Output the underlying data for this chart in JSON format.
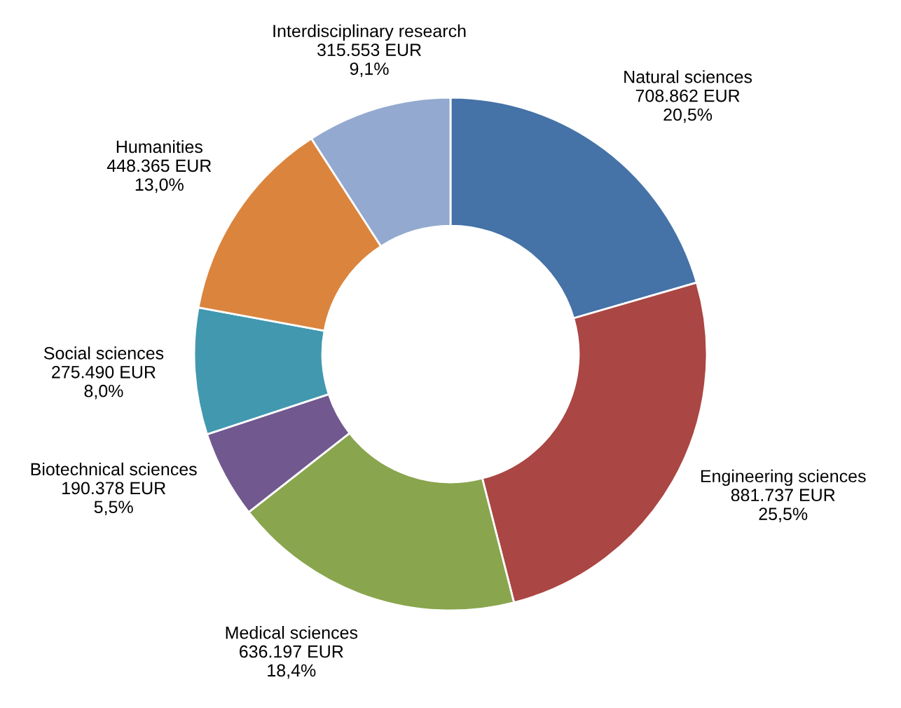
{
  "chart_data": {
    "type": "donut",
    "categories": [
      "Natural sciences",
      "Engineering sciences",
      "Medical sciences",
      "Biotechnical sciences",
      "Social sciences",
      "Humanities",
      "Interdisciplinary research"
    ],
    "values": [
      708862,
      881737,
      636197,
      190378,
      275490,
      448365,
      315553
    ],
    "value_labels": [
      "708.862 EUR\n20,5%",
      "881.737 EUR\n25,5%",
      "636.197 EUR\n18,4%",
      "190.378 EUR\n5,5%",
      "275.490 EUR\n8,0%",
      "448.365 EUR\n13,0%",
      "315.553 EUR\n9,1%"
    ],
    "colors": [
      "#4572a7",
      "#aa4643",
      "#89a54e",
      "#71588f",
      "#4198af",
      "#db843d",
      "#93a9cf"
    ],
    "legend": false
  }
}
